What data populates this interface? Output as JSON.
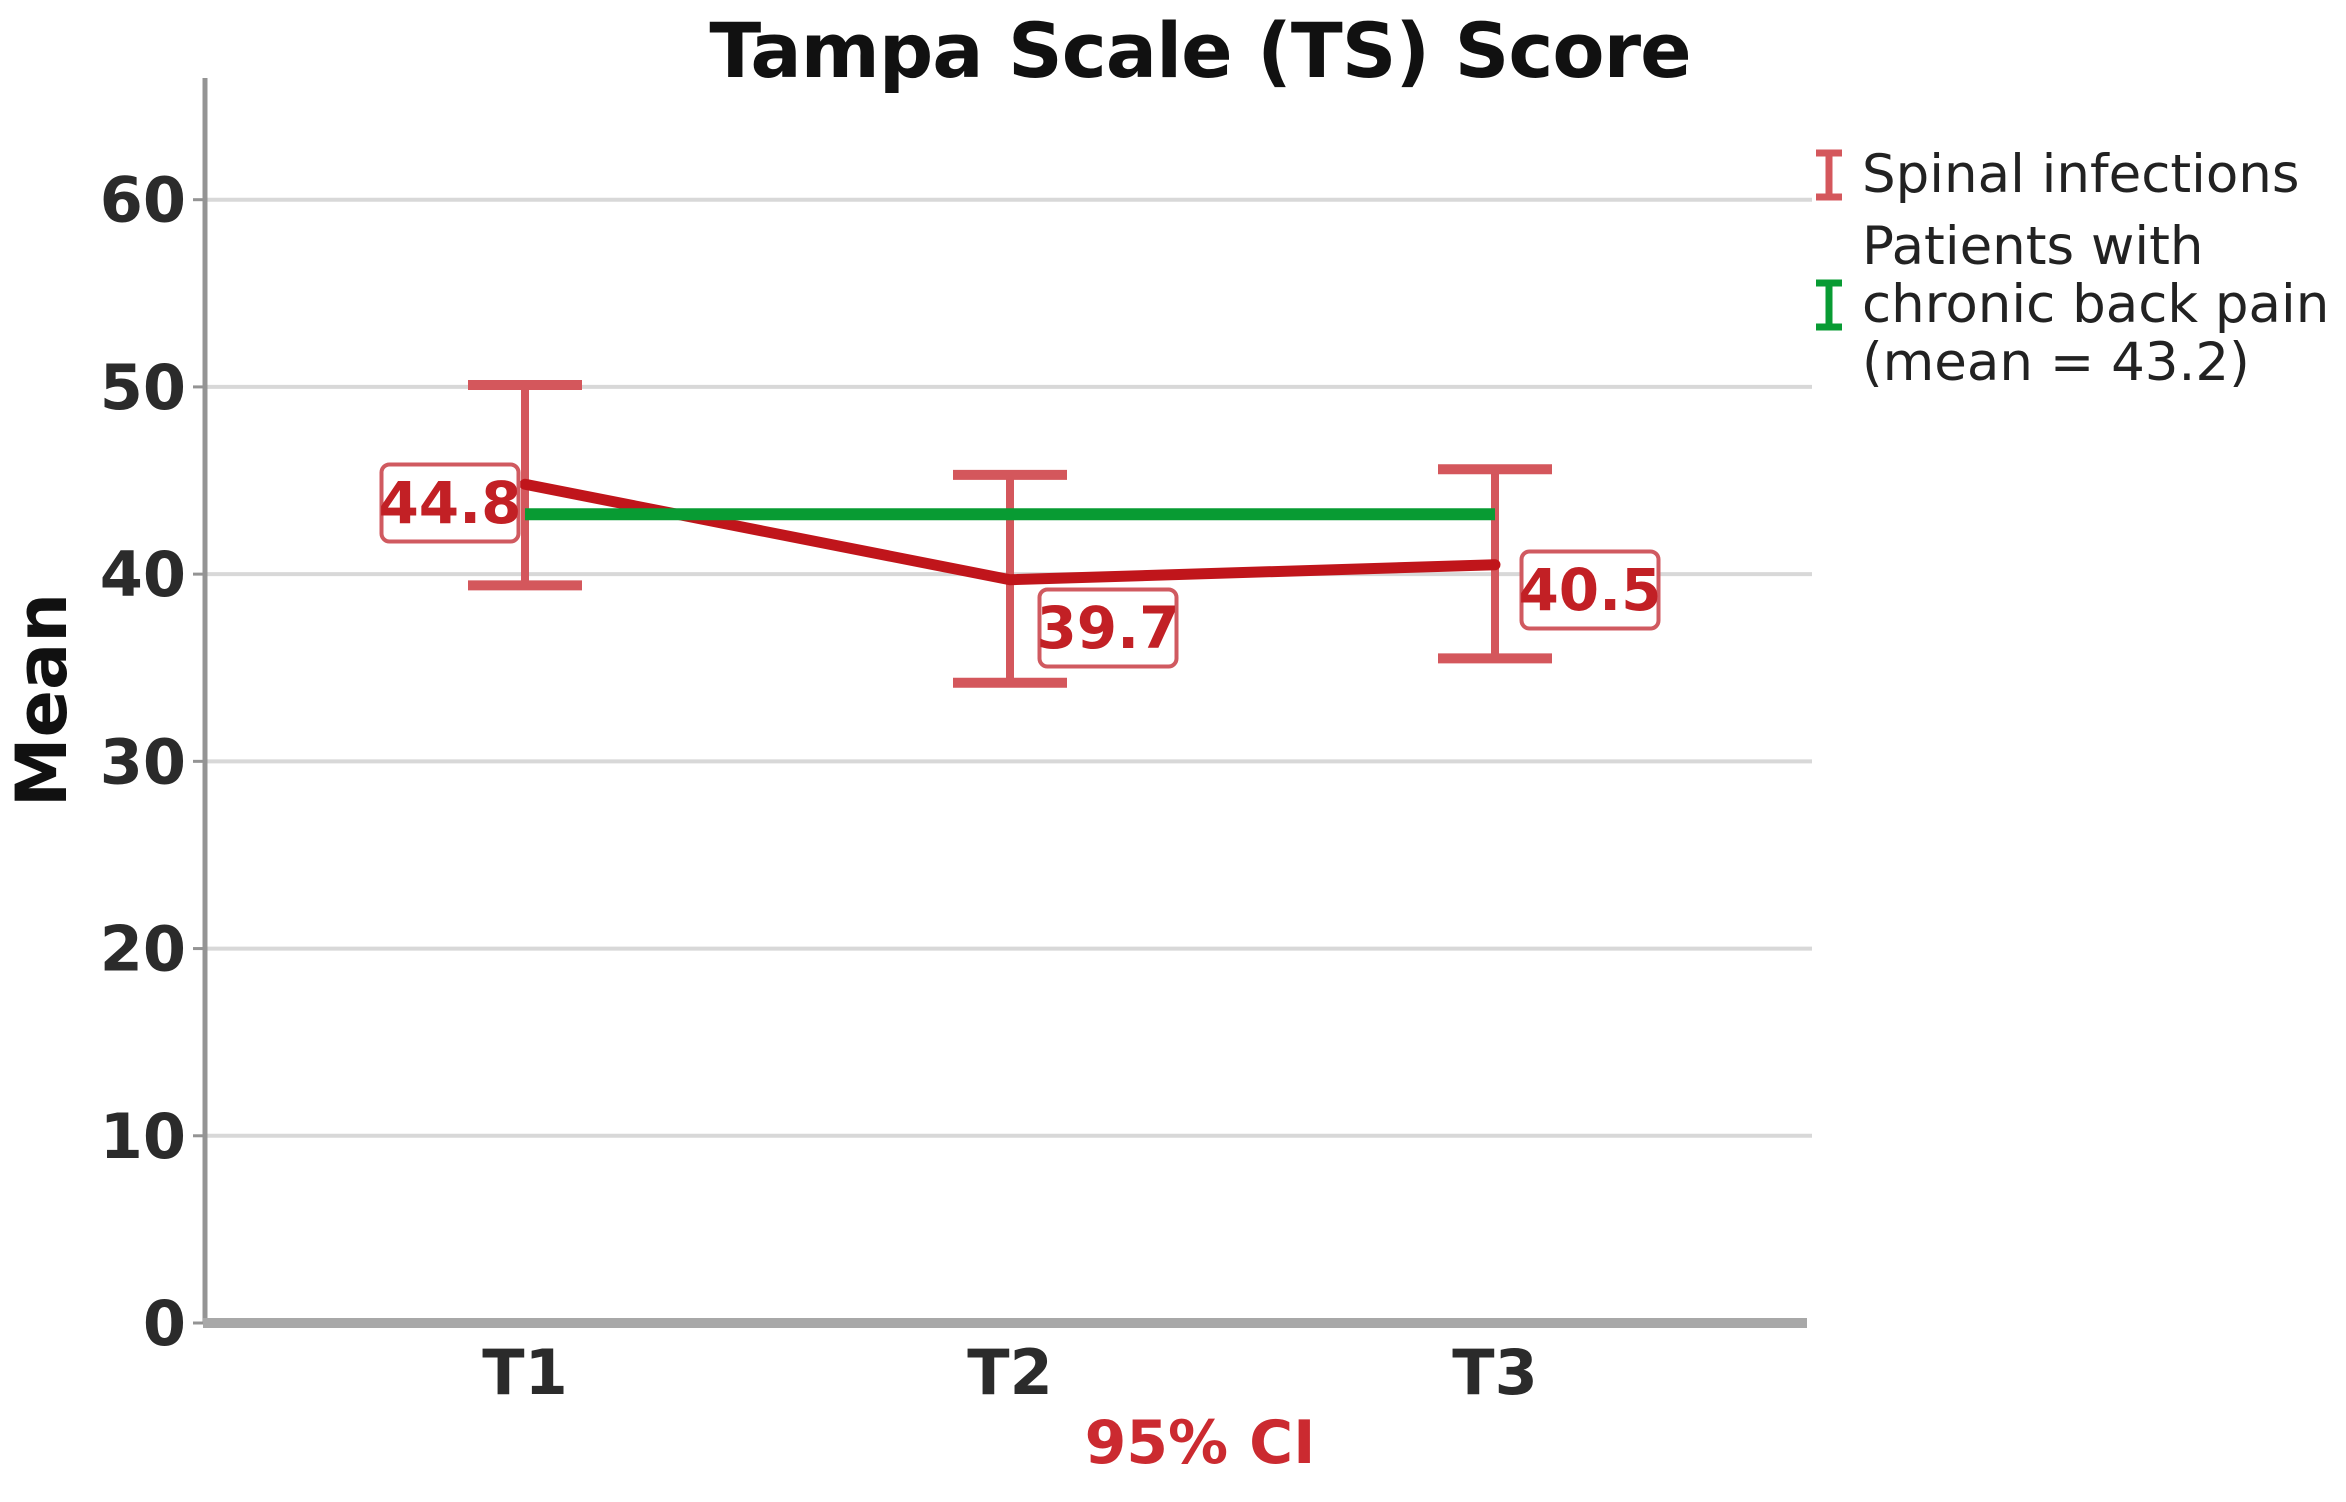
{
  "figure": {
    "title": "Tampa Scale (TS) Score",
    "y_axis_label": "Mean",
    "x_axis_sublabel": "95% CI"
  },
  "legend": {
    "position": "right",
    "entries": [
      {
        "glyph": "error-bar-icon",
        "color": "#d4575c",
        "label": "Spinal infections"
      },
      {
        "glyph": "error-bar-icon",
        "color": "#089b33",
        "label": "Patients with\nchronic back pain\n(mean = 43.2)"
      }
    ]
  },
  "chart_data": {
    "type": "line",
    "title": "Tampa Scale (TS) Score",
    "xlabel": "95% CI",
    "ylabel": "Mean",
    "categories": [
      "T1",
      "T2",
      "T3"
    ],
    "yticks": [
      0,
      10,
      20,
      30,
      40,
      50,
      60
    ],
    "ylim": [
      0,
      66.5
    ],
    "grid": true,
    "legend_position": "right",
    "series": [
      {
        "name": "Spinal infections",
        "type": "line-with-error-bars",
        "color": "#c0151b",
        "error_bar_color": "#d4575c",
        "values": [
          44.8,
          39.7,
          40.5
        ],
        "ci_lower": [
          39.4,
          34.2,
          35.5
        ],
        "ci_upper": [
          50.1,
          45.3,
          45.6
        ],
        "point_labels": [
          "44.8",
          "39.7",
          "40.5"
        ],
        "point_label_color": "#c22025",
        "point_label_box_color": "#d05a60"
      },
      {
        "name": "Patients with chronic back pain (mean = 43.2)",
        "type": "reference-line",
        "color": "#089b33",
        "value": 43.2
      }
    ],
    "error_bars": "95% CI"
  },
  "colors": {
    "grid_line": "#d8d8d8",
    "y_axis_line": "#949494",
    "x_axis_line": "#a8a8a8",
    "tick_label": "#2b2b2b",
    "sublabel_red": "#cb2a30"
  }
}
